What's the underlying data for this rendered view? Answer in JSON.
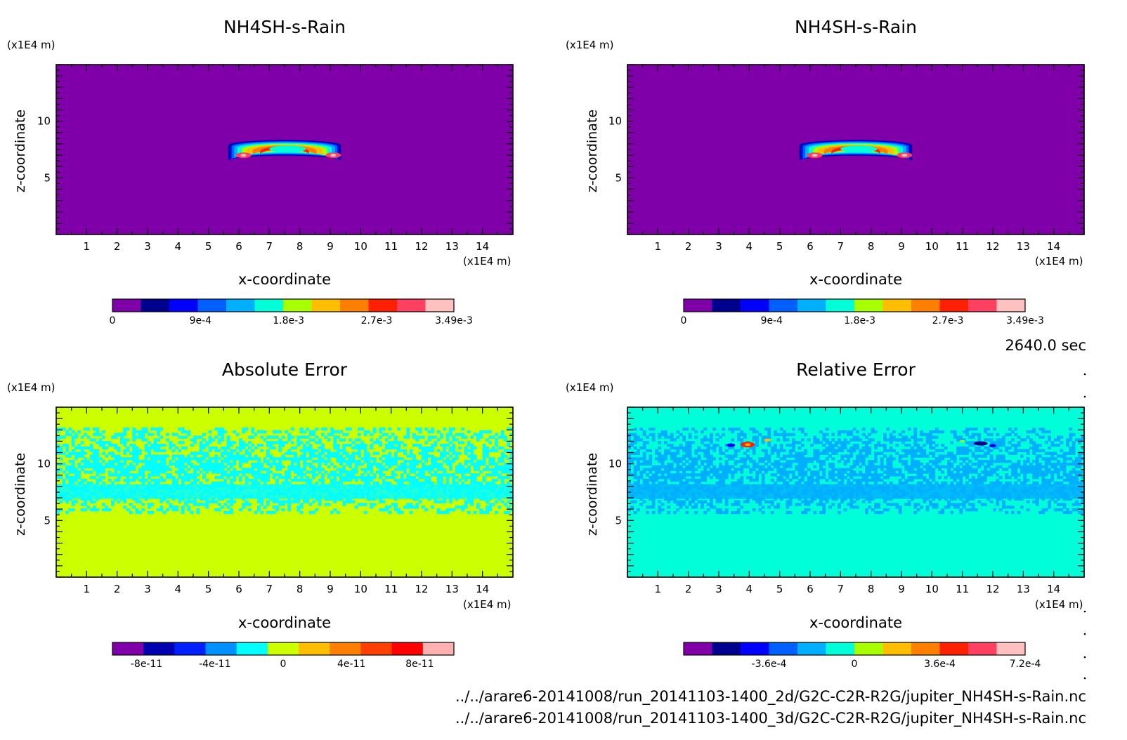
{
  "colors": {
    "background": "#ffffff",
    "rain_palette": [
      "#7f00a8",
      "#00008f",
      "#0000ff",
      "#0060ff",
      "#00b0ff",
      "#00ffd8",
      "#a8ff00",
      "#ffbf00",
      "#ff7f00",
      "#ff2000",
      "#ff4060",
      "#ffc0c0"
    ],
    "abs_err_palette": [
      "#7f00a8",
      "#0000b0",
      "#0020ff",
      "#0090ff",
      "#00ffff",
      "#ccff00",
      "#ffbf00",
      "#ff7f00",
      "#ff4000",
      "#ff0000",
      "#ffb0b0"
    ],
    "rel_err_palette": [
      "#7f00a8",
      "#00008f",
      "#0000ff",
      "#0060ff",
      "#00b0ff",
      "#00ffd8",
      "#a8ff00",
      "#ffbf00",
      "#ff7f00",
      "#ff2000",
      "#ff4060",
      "#ffc0c0"
    ]
  },
  "time_label": "2640.0 sec",
  "file_lines": [
    "../../arare6-20141008/run_20141103-1400_2d/G2C-C2R-R2G/jupiter_NH4SH-s-Rain.nc",
    "../../arare6-20141008/run_20141103-1400_3d/G2C-C2R-R2G/jupiter_NH4SH-s-Rain.nc"
  ],
  "chart_data": [
    {
      "type": "heatmap",
      "title": "NH4SH-s-Rain",
      "xlabel": "x-coordinate",
      "ylabel": "z-coordinate",
      "x_unit": "(x1E4 m)",
      "y_unit": "(x1E4 m)",
      "xlim": [
        0,
        15
      ],
      "ylim": [
        0,
        15
      ],
      "xticks": [
        "1",
        "2",
        "3",
        "4",
        "5",
        "6",
        "7",
        "8",
        "9",
        "10",
        "11",
        "12",
        "13",
        "14"
      ],
      "yticks": [
        "5",
        "10"
      ],
      "background_value": 0,
      "feature": "rain band centered near x=7.5, z=7, spanning x=5.8 to 9.5, peak values 3.49e-3 near x=6 and x=9",
      "colorbar": {
        "min": 0,
        "max": 0.00349,
        "ticks": [
          "0",
          "9e-4",
          "1.8e-3",
          "2.7e-3",
          "3.49e-3"
        ]
      }
    },
    {
      "type": "heatmap",
      "title": "NH4SH-s-Rain",
      "xlabel": "x-coordinate",
      "ylabel": "z-coordinate",
      "x_unit": "(x1E4 m)",
      "y_unit": "(x1E4 m)",
      "xlim": [
        0,
        15
      ],
      "ylim": [
        0,
        15
      ],
      "xticks": [
        "1",
        "2",
        "3",
        "4",
        "5",
        "6",
        "7",
        "8",
        "9",
        "10",
        "11",
        "12",
        "13",
        "14"
      ],
      "yticks": [
        "5",
        "10"
      ],
      "background_value": 0,
      "feature": "rain band centered near x=7.5, z=7, spanning x=5.8 to 9.5, peak values 3.49e-3 near x=6 and x=9",
      "colorbar": {
        "min": 0,
        "max": 0.00349,
        "ticks": [
          "0",
          "9e-4",
          "1.8e-3",
          "2.7e-3",
          "3.49e-3"
        ]
      }
    },
    {
      "type": "heatmap",
      "title": "Absolute Error",
      "xlabel": "x-coordinate",
      "ylabel": "z-coordinate",
      "x_unit": "(x1E4 m)",
      "y_unit": "(x1E4 m)",
      "xlim": [
        0,
        15
      ],
      "ylim": [
        0,
        15
      ],
      "xticks": [
        "1",
        "2",
        "3",
        "4",
        "5",
        "6",
        "7",
        "8",
        "9",
        "10",
        "11",
        "12",
        "13",
        "14"
      ],
      "yticks": [
        "5",
        "10"
      ],
      "background_value": 0,
      "feature": "noise band of small negative values between z=5.5 and z=13",
      "colorbar": {
        "min": -1e-10,
        "max": 1e-10,
        "ticks": [
          "-8e-11",
          "-4e-11",
          "0",
          "4e-11",
          "8e-11"
        ]
      }
    },
    {
      "type": "heatmap",
      "title": "Relative Error",
      "xlabel": "x-coordinate",
      "ylabel": "z-coordinate",
      "x_unit": "(x1E4 m)",
      "y_unit": "(x1E4 m)",
      "xlim": [
        0,
        15
      ],
      "ylim": [
        0,
        15
      ],
      "xticks": [
        "1",
        "2",
        "3",
        "4",
        "5",
        "6",
        "7",
        "8",
        "9",
        "10",
        "11",
        "12",
        "13",
        "14"
      ],
      "yticks": [
        "5",
        "10"
      ],
      "background_value": 0,
      "feature": "noise band between z=5.5 and z=13 with spikes near x=4, z=11.7 (positive) and x=11.8, z=11.7 (negative)",
      "colorbar": {
        "min": -0.00072,
        "max": 0.00072,
        "ticks": [
          "-3.6e-4",
          "0",
          "3.6e-4",
          "7.2e-4"
        ]
      }
    }
  ]
}
